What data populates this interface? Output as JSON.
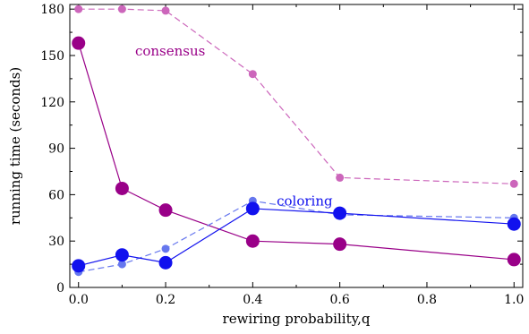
{
  "chart_data": {
    "type": "line",
    "xlabel": "rewiring probability,q",
    "ylabel": "running time (seconds)",
    "xlim": [
      -0.02,
      1.02
    ],
    "ylim": [
      0,
      183
    ],
    "xticks": [
      0.0,
      0.2,
      0.4,
      0.6,
      0.8,
      1.0
    ],
    "xtick_labels": [
      "0.0",
      "0.2",
      "0.4",
      "0.6",
      "0.8",
      "1.0"
    ],
    "yticks": [
      0,
      30,
      60,
      90,
      120,
      150,
      180
    ],
    "ytick_labels": [
      "0",
      "30",
      "60",
      "90",
      "120",
      "150",
      "180"
    ],
    "grid": false,
    "series": [
      {
        "color": "#cc66bb",
        "dashed": true,
        "marker": "small",
        "x": [
          0.0,
          0.1,
          0.2,
          0.4,
          0.6,
          1.0
        ],
        "y": [
          180,
          180,
          179,
          138,
          71,
          67
        ]
      },
      {
        "color": "#990088",
        "dashed": false,
        "marker": "large",
        "x": [
          0.0,
          0.1,
          0.2,
          0.4,
          0.6,
          1.0
        ],
        "y": [
          158,
          64,
          50,
          30,
          28,
          18
        ]
      },
      {
        "color": "#6677ee",
        "dashed": true,
        "marker": "small",
        "x": [
          0.0,
          0.1,
          0.2,
          0.4,
          0.6,
          1.0
        ],
        "y": [
          10,
          15,
          25,
          56,
          47,
          45
        ]
      },
      {
        "color": "#1111ee",
        "dashed": false,
        "marker": "large",
        "x": [
          0.0,
          0.1,
          0.2,
          0.4,
          0.6,
          1.0
        ],
        "y": [
          14,
          21,
          16,
          51,
          48,
          41
        ]
      }
    ],
    "annotations": [
      {
        "text": "consensus",
        "x": 0.13,
        "y": 153,
        "color": "#990088"
      },
      {
        "text": "coloring",
        "x": 0.455,
        "y": 56,
        "color": "#1111ee"
      }
    ]
  }
}
